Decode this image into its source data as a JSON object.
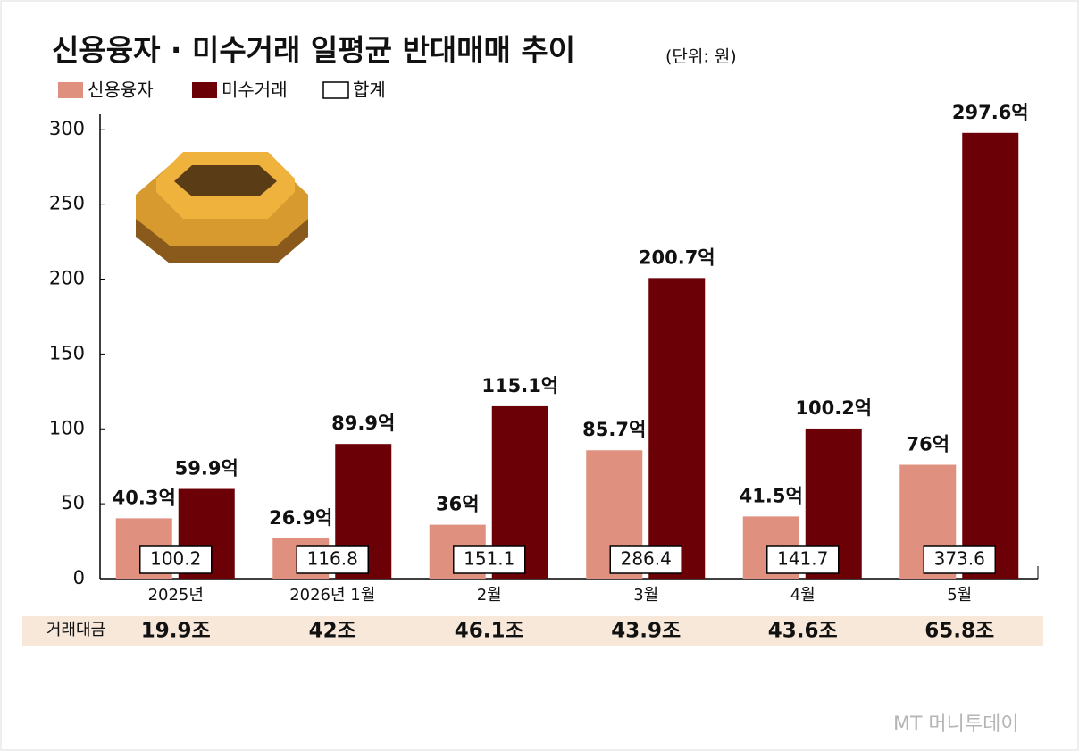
{
  "chart_data": {
    "type": "bar",
    "title": "신용융자 · 미수거래 일평균 반대매매 추이",
    "subtitle": "(단위: 원)",
    "categories": [
      "2025년",
      "2026년 1월",
      "2월",
      "3월",
      "4월",
      "5월"
    ],
    "series": [
      {
        "name": "신용융자",
        "color": "#e0907e",
        "values": [
          40.3,
          26.9,
          36,
          85.7,
          41.5,
          76
        ],
        "value_labels": [
          "40.3억",
          "26.9억",
          "36억",
          "85.7억",
          "41.5억",
          "76억"
        ]
      },
      {
        "name": "미수거래",
        "color": "#6b0006",
        "values": [
          59.9,
          89.9,
          115.1,
          200.7,
          100.2,
          297.6
        ],
        "value_labels": [
          "59.9억",
          "89.9억",
          "115.1억",
          "200.7억",
          "100.2억",
          "297.6억"
        ]
      }
    ],
    "totals": {
      "name": "합계",
      "values": [
        100.2,
        116.8,
        151.1,
        286.4,
        141.7,
        373.6
      ]
    },
    "volume": {
      "label": "거래대금",
      "values": [
        19.9,
        42,
        46.1,
        43.9,
        43.6,
        65.8
      ],
      "value_labels": [
        "19.9조",
        "42조",
        "46.1조",
        "43.9조",
        "43.6조",
        "65.8조"
      ]
    },
    "ylim": [
      0,
      310
    ],
    "yticks": [
      0,
      50,
      100,
      150,
      200,
      250,
      300
    ],
    "grid": false,
    "watermark": "MT 머니투데이"
  }
}
